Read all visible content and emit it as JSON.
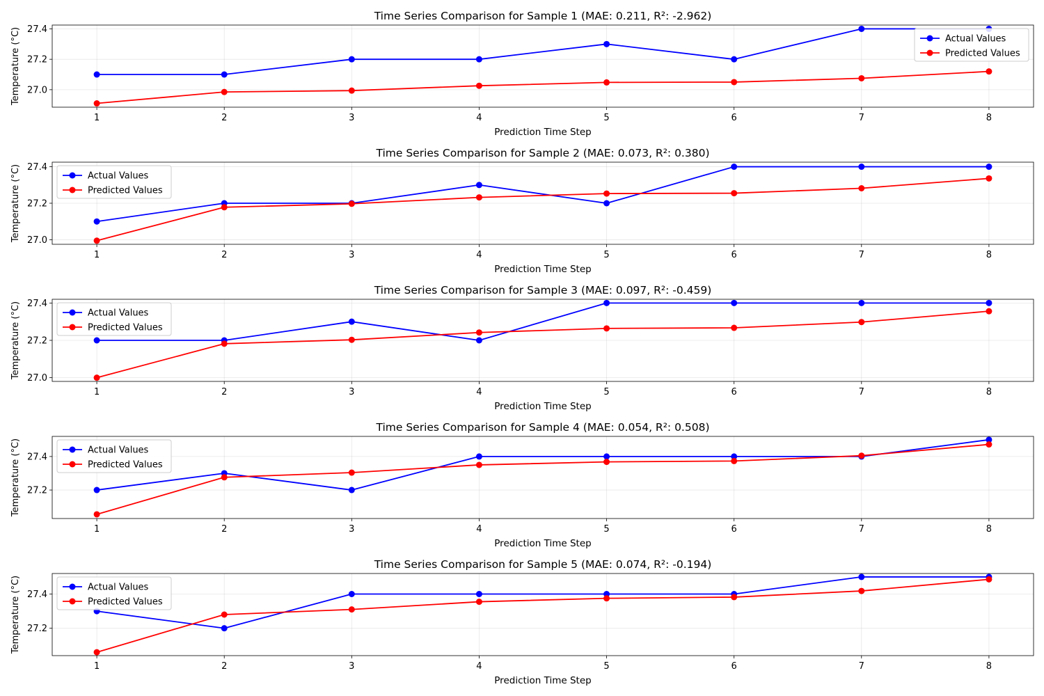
{
  "chart_data": [
    {
      "type": "line",
      "title": "Time Series Comparison for Sample 1 (MAE: 0.211, R²: -2.962)",
      "xlabel": "Prediction Time Step",
      "ylabel": "Temperature (°C)",
      "x": [
        1,
        2,
        3,
        4,
        5,
        6,
        7,
        8
      ],
      "xlim": [
        0.65,
        8.35
      ],
      "ylim": [
        26.885,
        27.425
      ],
      "yticks": [
        "27.0",
        "27.2",
        "27.4"
      ],
      "ytick_values": [
        27.0,
        27.2,
        27.4
      ],
      "grid": true,
      "legend_position": "upper right",
      "series": [
        {
          "name": "Actual Values",
          "color": "#0000ff",
          "values": [
            27.1,
            27.1,
            27.2,
            27.2,
            27.3,
            27.2,
            27.4,
            27.4
          ]
        },
        {
          "name": "Predicted Values",
          "color": "#ff0000",
          "values": [
            26.91,
            26.985,
            26.994,
            27.026,
            27.048,
            27.05,
            27.075,
            27.12
          ]
        }
      ]
    },
    {
      "type": "line",
      "title": "Time Series Comparison for Sample 2 (MAE: 0.073, R²: 0.380)",
      "xlabel": "Prediction Time Step",
      "ylabel": "Temperature (°C)",
      "x": [
        1,
        2,
        3,
        4,
        5,
        6,
        7,
        8
      ],
      "xlim": [
        0.65,
        8.35
      ],
      "ylim": [
        26.975,
        27.425
      ],
      "yticks": [
        "27.0",
        "27.2",
        "27.4"
      ],
      "ytick_values": [
        27.0,
        27.2,
        27.4
      ],
      "grid": true,
      "legend_position": "upper left",
      "series": [
        {
          "name": "Actual Values",
          "color": "#0000ff",
          "values": [
            27.1,
            27.2,
            27.2,
            27.3,
            27.2,
            27.4,
            27.4,
            27.4
          ]
        },
        {
          "name": "Predicted Values",
          "color": "#ff0000",
          "values": [
            26.995,
            27.178,
            27.197,
            27.232,
            27.253,
            27.255,
            27.282,
            27.336
          ]
        }
      ]
    },
    {
      "type": "line",
      "title": "Time Series Comparison for Sample 3 (MAE: 0.097, R²: -0.459)",
      "xlabel": "Prediction Time Step",
      "ylabel": "Temperature (°C)",
      "x": [
        1,
        2,
        3,
        4,
        5,
        6,
        7,
        8
      ],
      "xlim": [
        0.65,
        8.35
      ],
      "ylim": [
        26.98,
        27.42
      ],
      "yticks": [
        "27.0",
        "27.2",
        "27.4"
      ],
      "ytick_values": [
        27.0,
        27.2,
        27.4
      ],
      "grid": true,
      "legend_position": "upper left",
      "series": [
        {
          "name": "Actual Values",
          "color": "#0000ff",
          "values": [
            27.2,
            27.2,
            27.3,
            27.2,
            27.4,
            27.4,
            27.4,
            27.4
          ]
        },
        {
          "name": "Predicted Values",
          "color": "#ff0000",
          "values": [
            27.0,
            27.182,
            27.203,
            27.242,
            27.264,
            27.267,
            27.298,
            27.356
          ]
        }
      ]
    },
    {
      "type": "line",
      "title": "Time Series Comparison for Sample 4 (MAE: 0.054, R²: 0.508)",
      "xlabel": "Prediction Time Step",
      "ylabel": "Temperature (°C)",
      "x": [
        1,
        2,
        3,
        4,
        5,
        6,
        7,
        8
      ],
      "xlim": [
        0.65,
        8.35
      ],
      "ylim": [
        27.03,
        27.52
      ],
      "yticks": [
        "27.2",
        "27.4"
      ],
      "ytick_values": [
        27.2,
        27.4
      ],
      "grid": true,
      "legend_position": "upper left",
      "series": [
        {
          "name": "Actual Values",
          "color": "#0000ff",
          "values": [
            27.2,
            27.3,
            27.2,
            27.4,
            27.4,
            27.4,
            27.4,
            27.5
          ]
        },
        {
          "name": "Predicted Values",
          "color": "#ff0000",
          "values": [
            27.055,
            27.276,
            27.304,
            27.35,
            27.368,
            27.373,
            27.405,
            27.472
          ]
        }
      ]
    },
    {
      "type": "line",
      "title": "Time Series Comparison for Sample 5 (MAE: 0.074, R²: -0.194)",
      "xlabel": "Prediction Time Step",
      "ylabel": "Temperature (°C)",
      "x": [
        1,
        2,
        3,
        4,
        5,
        6,
        7,
        8
      ],
      "xlim": [
        0.65,
        8.35
      ],
      "ylim": [
        27.04,
        27.52
      ],
      "yticks": [
        "27.2",
        "27.4"
      ],
      "ytick_values": [
        27.2,
        27.4
      ],
      "grid": true,
      "legend_position": "upper left",
      "series": [
        {
          "name": "Actual Values",
          "color": "#0000ff",
          "values": [
            27.3,
            27.2,
            27.4,
            27.4,
            27.4,
            27.4,
            27.5,
            27.5
          ]
        },
        {
          "name": "Predicted Values",
          "color": "#ff0000",
          "values": [
            27.06,
            27.28,
            27.31,
            27.355,
            27.375,
            27.382,
            27.418,
            27.486
          ]
        }
      ]
    }
  ]
}
